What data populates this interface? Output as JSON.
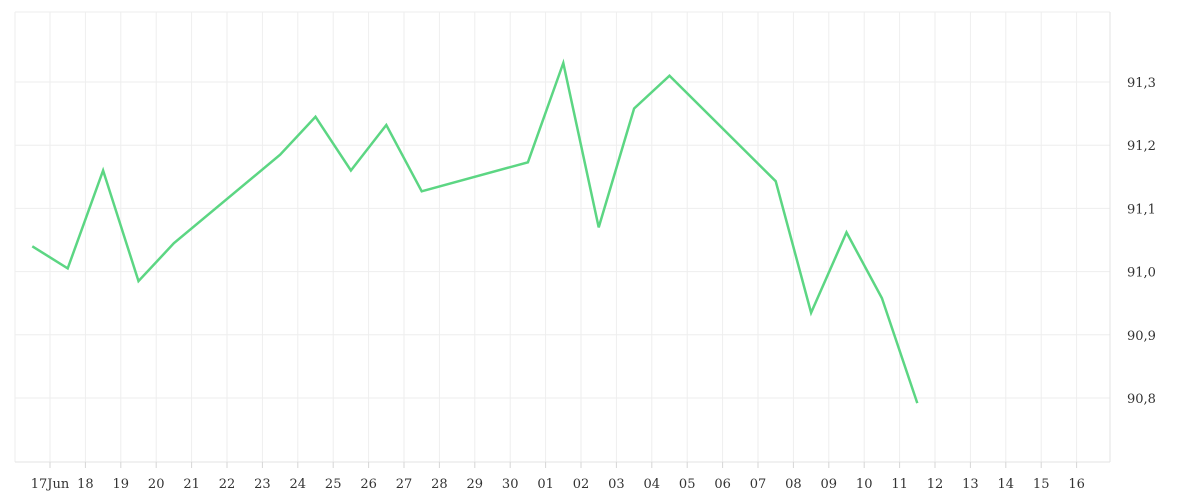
{
  "chart_data": {
    "type": "line",
    "title": "",
    "xlabel": "",
    "ylabel": "",
    "x_tick_labels": [
      "17Jun",
      "18",
      "19",
      "20",
      "21",
      "22",
      "23",
      "24",
      "25",
      "26",
      "27",
      "28",
      "29",
      "30",
      "01",
      "02",
      "03",
      "04",
      "05",
      "06",
      "07",
      "08",
      "09",
      "10",
      "11",
      "12",
      "13",
      "14",
      "15",
      "16"
    ],
    "y_tick_labels": [
      "90,8",
      "90,9",
      "91,0",
      "91,1",
      "91,2",
      "91,3"
    ],
    "y_tick_values": [
      90.8,
      90.9,
      91.0,
      91.1,
      91.2,
      91.3
    ],
    "ylim": [
      90.7,
      91.42
    ],
    "grid": true,
    "legend": "none",
    "series": [
      {
        "color": "#5cd683",
        "points": [
          {
            "x": "2025-06-16T12:00",
            "y": 91.04
          },
          {
            "x": "2025-06-17T12:00",
            "y": 91.005
          },
          {
            "x": "2025-06-18T12:00",
            "y": 91.16
          },
          {
            "x": "2025-06-19T12:00",
            "y": 90.985
          },
          {
            "x": "2025-06-20T12:00",
            "y": 91.045
          },
          {
            "x": "2025-06-23T12:00",
            "y": 91.185
          },
          {
            "x": "2025-06-24T12:00",
            "y": 91.245
          },
          {
            "x": "2025-06-25T12:00",
            "y": 91.16
          },
          {
            "x": "2025-06-26T12:00",
            "y": 91.232
          },
          {
            "x": "2025-06-27T12:00",
            "y": 91.127
          },
          {
            "x": "2025-06-30T12:00",
            "y": 91.173
          },
          {
            "x": "2025-07-01T12:00",
            "y": 91.33
          },
          {
            "x": "2025-07-02T12:00",
            "y": 91.07
          },
          {
            "x": "2025-07-03T12:00",
            "y": 91.258
          },
          {
            "x": "2025-07-04T12:00",
            "y": 91.31
          },
          {
            "x": "2025-07-07T12:00",
            "y": 91.143
          },
          {
            "x": "2025-07-08T12:00",
            "y": 90.935
          },
          {
            "x": "2025-07-09T12:00",
            "y": 91.062
          },
          {
            "x": "2025-07-10T12:00",
            "y": 90.958
          },
          {
            "x": "2025-07-11T12:00",
            "y": 90.792
          }
        ]
      }
    ]
  }
}
